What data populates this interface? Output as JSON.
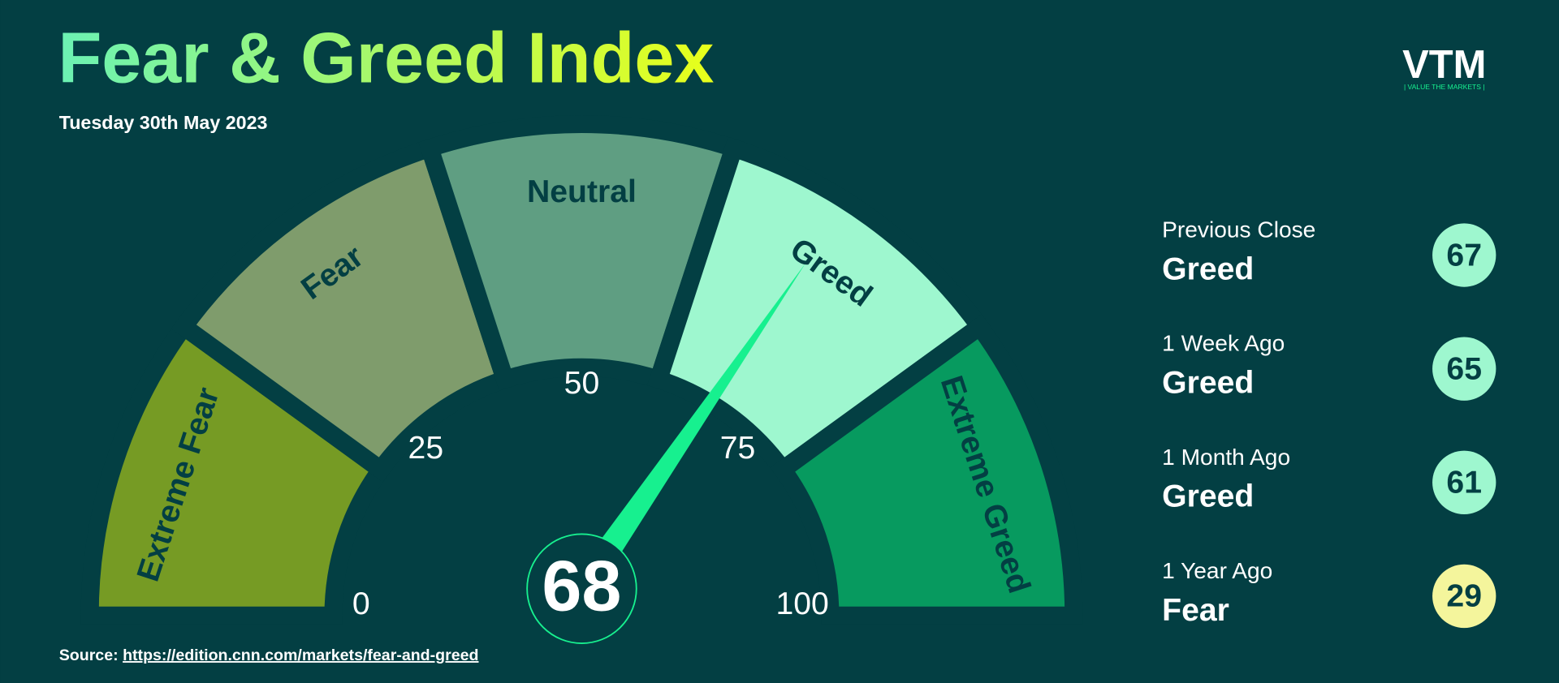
{
  "chart_data": {
    "type": "gauge",
    "title": "Fear & Greed Index",
    "subtitle": "Tuesday 30th May 2023",
    "value": 68,
    "ylim": [
      0,
      100
    ],
    "yticks": [
      0,
      25,
      50,
      75,
      100
    ],
    "needle_color": "#17f08f",
    "bands": [
      {
        "name": "Extreme Fear",
        "from": 0,
        "to": 20,
        "color": "#769b24"
      },
      {
        "name": "Fear",
        "from": 20,
        "to": 40,
        "color": "#7f9c6c"
      },
      {
        "name": "Neutral",
        "from": 40,
        "to": 60,
        "color": "#5f9e82"
      },
      {
        "name": "Greed",
        "from": 60,
        "to": 80,
        "color": "#9ef7cf"
      },
      {
        "name": "Extreme Greed",
        "from": 80,
        "to": 100,
        "color": "#079a5f"
      }
    ],
    "history": [
      {
        "label": "Previous Close",
        "rating": "Greed",
        "value": 67,
        "color": "#9ef7cf"
      },
      {
        "label": "1 Week Ago",
        "rating": "Greed",
        "value": 65,
        "color": "#9ef7cf"
      },
      {
        "label": "1 Month Ago",
        "rating": "Greed",
        "value": 61,
        "color": "#9ef7cf"
      },
      {
        "label": "1 Year Ago",
        "rating": "Fear",
        "value": 29,
        "color": "#f4f59c"
      }
    ],
    "source_label": "Source:",
    "source_url": "https://edition.cnn.com/markets/fear-and-greed",
    "logo": {
      "text": "VTM",
      "tagline": "| VALUE THE MARKETS |"
    }
  }
}
